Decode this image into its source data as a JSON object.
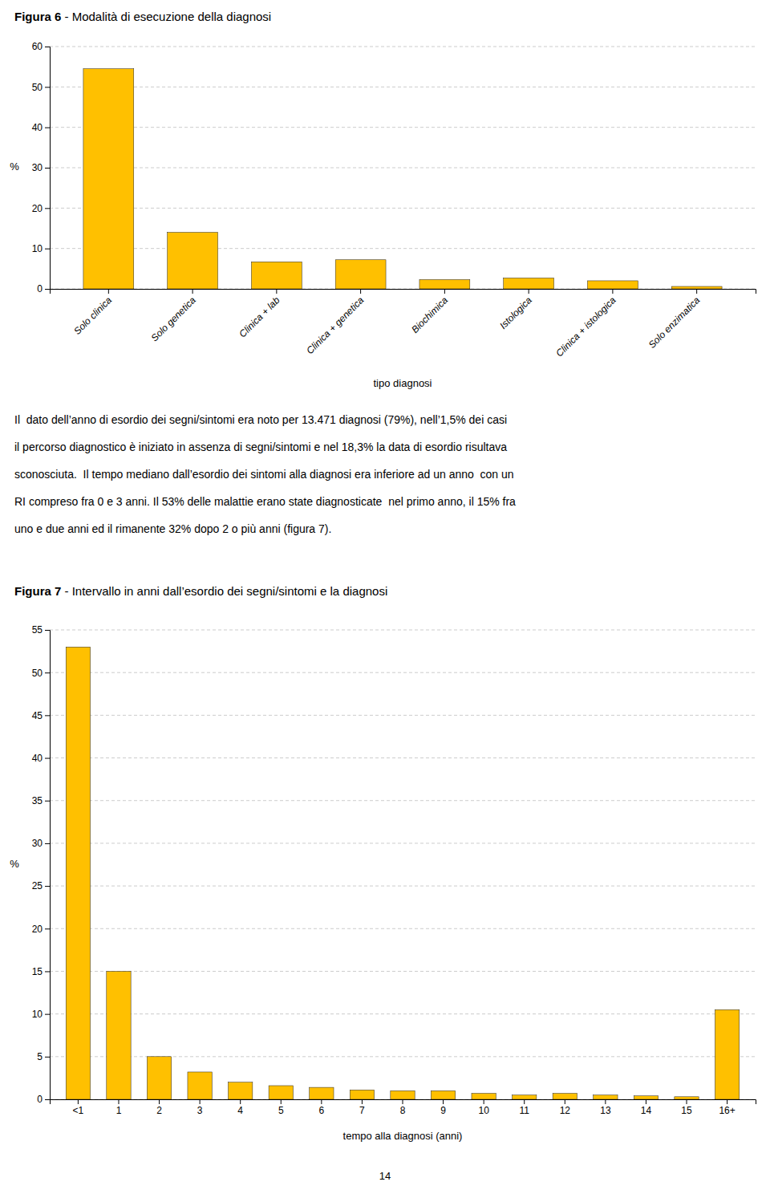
{
  "chart_data": [
    {
      "type": "bar",
      "title": "Figura 6 - Modalità di esecuzione della diagnosi",
      "categories": [
        "Solo clinica",
        "Solo genetica",
        "Clinica + lab",
        "Clinica + genetica",
        "Biochimica",
        "Istologica",
        "Clinica + istologica",
        "Solo enzimatica"
      ],
      "values": [
        54.5,
        14.0,
        6.7,
        7.2,
        2.3,
        2.7,
        2.0,
        0.6
      ],
      "color": "#FFC000",
      "x_label": "tipo diagnosi",
      "y_label": "%",
      "ylim": [
        0,
        60
      ],
      "yticks": [
        0,
        10,
        20,
        30,
        40,
        50,
        60
      ],
      "grid": true
    },
    {
      "type": "bar",
      "title": "Figura 7 - Intervallo in anni dall’esordio dei segni/sintomi e la diagnosi",
      "categories": [
        "<1",
        "1",
        "2",
        "3",
        "4",
        "5",
        "6",
        "7",
        "8",
        "9",
        "10",
        "11",
        "12",
        "13",
        "14",
        "15",
        "16+"
      ],
      "values": [
        53.0,
        15.0,
        5.0,
        3.2,
        2.0,
        1.6,
        1.4,
        1.1,
        1.0,
        1.0,
        0.7,
        0.5,
        0.7,
        0.5,
        0.4,
        0.3,
        10.5
      ],
      "color": "#FFC000",
      "x_label": "tempo alla diagnosi (anni)",
      "y_label": "%",
      "ylim": [
        0,
        55
      ],
      "yticks": [
        0,
        5,
        10,
        15,
        20,
        25,
        30,
        35,
        40,
        45,
        50,
        55
      ],
      "grid": true
    }
  ],
  "text": [
    "Il  dato dell’anno di esordio dei segni/sintomi era noto per 13.471 diagnosi (79%), nell’1,5% dei casi",
    "il percorso diagnostico è iniziato in assenza di segni/sintomi e nel 18,3% la data di esordio risultava",
    "sconosciuta.  Il tempo mediano dall’esordio dei sintomi alla diagnosi era inferiore ad un anno  con un",
    "RI compreso fra 0 e 3 anni. Il 53% delle malattie erano state diagnosticate  nel primo anno, il 15% fra",
    "uno e due anni ed il rimanente 32% dopo 2 o più anni (figura 7)."
  ],
  "page_number": "14"
}
